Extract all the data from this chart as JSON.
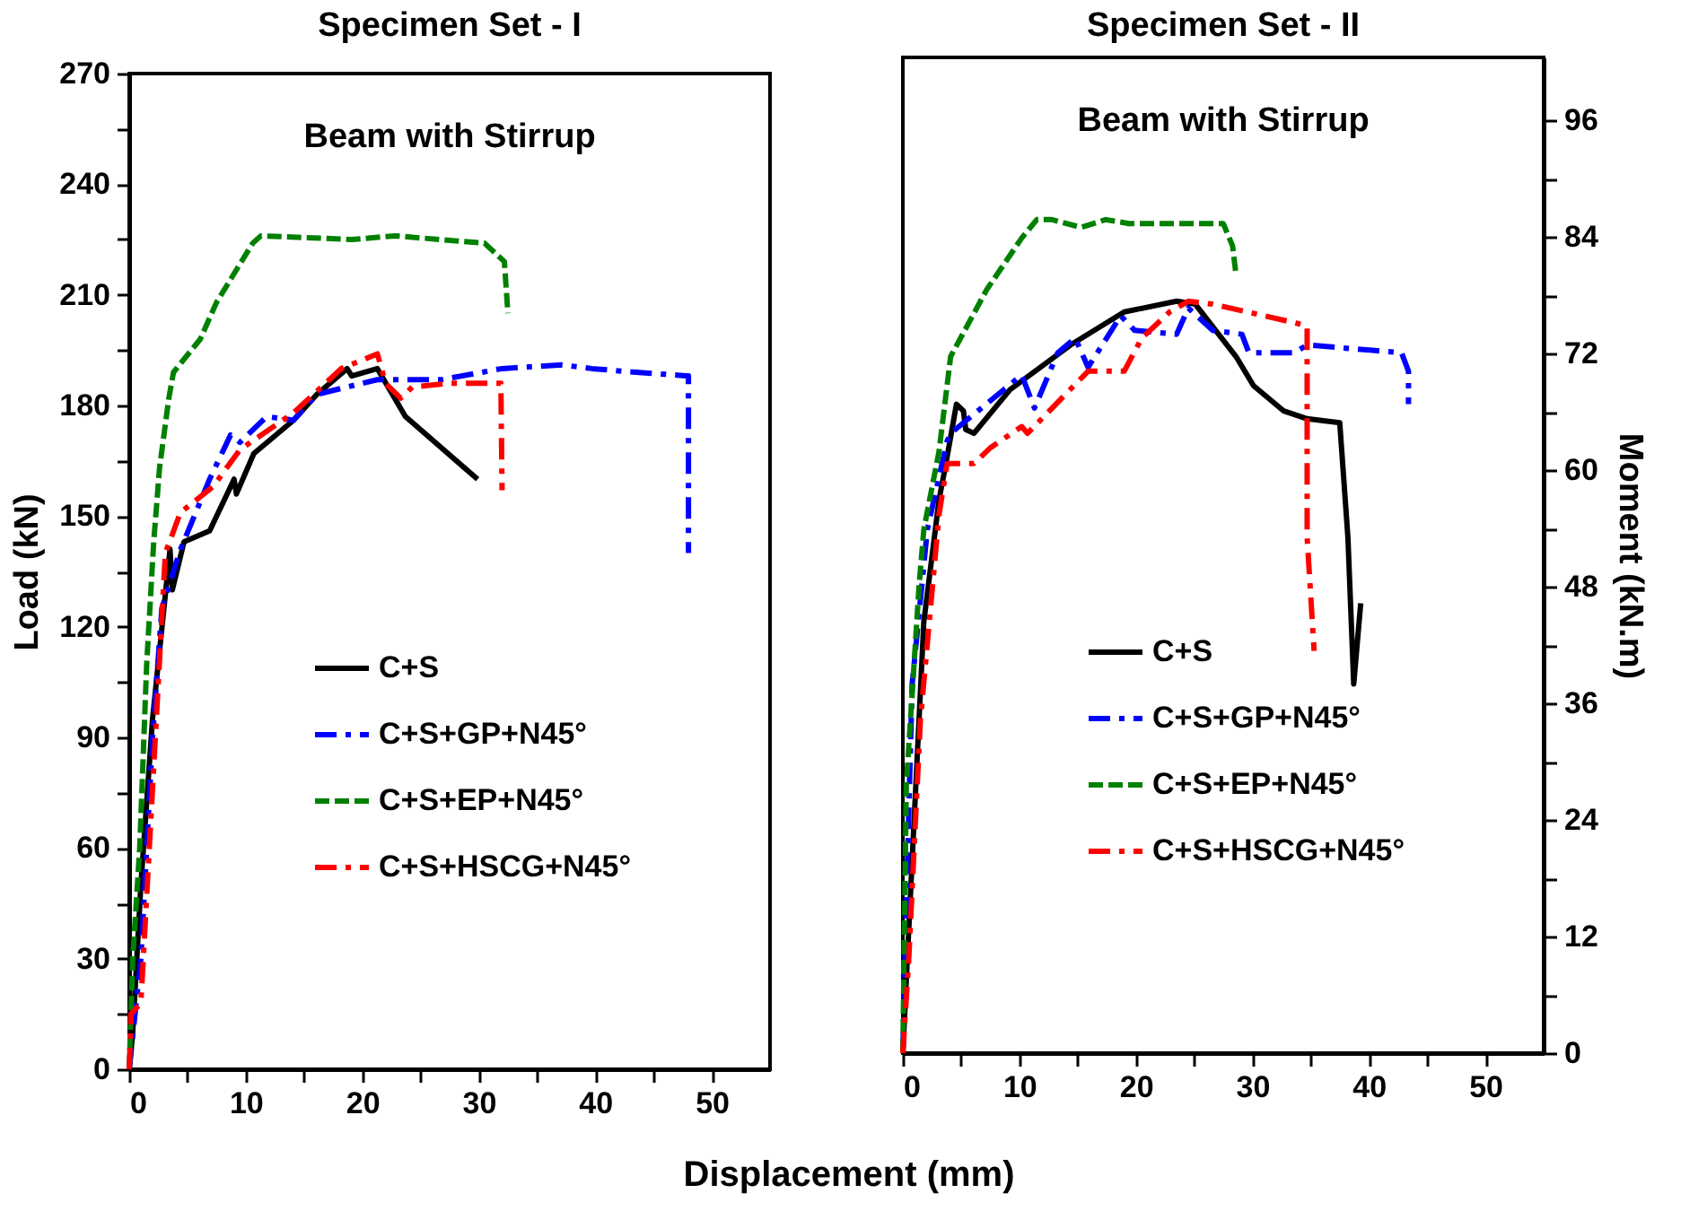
{
  "chart_data": [
    {
      "type": "line",
      "title": "Specimen Set - I",
      "xlabel": "Displacement (mm)",
      "ylabel": "Load (kN)",
      "annotations": [
        "Beam with Stirrup"
      ],
      "xlim": [
        0,
        55
      ],
      "xticks": [
        0,
        {
          "value": 5,
          "label": null
        },
        10,
        {
          "value": 15,
          "label": null
        },
        20,
        {
          "value": 25,
          "label": null
        },
        30,
        {
          "value": 35,
          "label": null
        },
        40,
        {
          "value": 45,
          "label": null
        },
        50
      ],
      "ylim": [
        0,
        270
      ],
      "yticks": [
        0,
        {
          "value": 15,
          "label": null
        },
        30,
        {
          "value": 45,
          "label": null
        },
        60,
        {
          "value": 75,
          "label": null
        },
        90,
        {
          "value": 105,
          "label": null
        },
        120,
        {
          "value": 135,
          "label": null
        },
        150,
        {
          "value": 165,
          "label": null
        },
        180,
        {
          "value": 195,
          "label": null
        },
        210,
        {
          "value": 225,
          "label": null
        },
        240,
        {
          "value": 255,
          "label": null
        },
        270
      ],
      "legend": "bottom right",
      "series": [
        {
          "name": "C+S",
          "color": "#000000",
          "line_style": "solid",
          "x": [
            0,
            0.3,
            1,
            2,
            3.5,
            3.7,
            4.7,
            6.9,
            9,
            9.2,
            10.7,
            14.1,
            16.1,
            18.7,
            19.1,
            21.3,
            23.7,
            29.9
          ],
          "values": [
            0,
            10,
            50,
            95,
            141,
            130,
            143,
            146,
            160,
            156,
            167,
            176,
            183,
            190,
            188,
            190,
            177,
            160
          ]
        },
        {
          "name": "C+S+GP+N45°",
          "color": "#0000ff",
          "line_style": "dashdot",
          "x": [
            0,
            1,
            2,
            2.8,
            4.4,
            6.9,
            8.7,
            9.5,
            11.8,
            14.1,
            16.1,
            21.3,
            26.8,
            32,
            37.1,
            39.7,
            43.5,
            48,
            48
          ],
          "values": [
            0,
            30,
            90,
            125,
            141,
            160,
            172,
            170,
            177,
            176,
            183,
            187,
            187,
            190,
            191,
            190,
            189,
            188,
            140
          ]
        },
        {
          "name": "C+S+EP+N45°",
          "color": "#008000",
          "line_style": "dashed",
          "x": [
            0,
            0.3,
            0.9,
            1.5,
            2.1,
            2.6,
            3.4,
            3.8,
            6.1,
            7.5,
            10.6,
            11.3,
            19.1,
            22.8,
            30.5,
            32.2,
            32.5
          ],
          "values": [
            0,
            30,
            60,
            110,
            143,
            163,
            182,
            189,
            198,
            208,
            224,
            226,
            225,
            226,
            224,
            219,
            205
          ]
        },
        {
          "name": "C+S+HSCG+N45°",
          "color": "#ff0000",
          "line_style": "dashdot",
          "x": [
            0,
            0.15,
            1,
            3.1,
            4.4,
            7.2,
            9.5,
            14.1,
            18.2,
            21.3,
            22,
            23.3,
            24.3,
            27.4,
            31.9,
            32
          ],
          "values": [
            0,
            15,
            18,
            140,
            151,
            158,
            168,
            178,
            190,
            194,
            186,
            182,
            185,
            186,
            186,
            157
          ]
        }
      ]
    },
    {
      "type": "line",
      "title": "Specimen Set - II",
      "y2label": "Moment (kN.m)",
      "annotations": [
        "Beam with Stirrup"
      ],
      "xlim": [
        0,
        55
      ],
      "xticks": [
        0,
        {
          "value": 5,
          "label": null
        },
        10,
        {
          "value": 15,
          "label": null
        },
        20,
        {
          "value": 25,
          "label": null
        },
        30,
        {
          "value": 35,
          "label": null
        },
        40,
        {
          "value": 45,
          "label": null
        },
        50
      ],
      "y2lim": [
        0,
        102.5
      ],
      "y2ticks": [
        0,
        {
          "value": 6,
          "label": null
        },
        12,
        {
          "value": 18,
          "label": null
        },
        24,
        {
          "value": 30,
          "label": null
        },
        36,
        {
          "value": 42,
          "label": null
        },
        48,
        {
          "value": 54,
          "label": null
        },
        60,
        {
          "value": 66,
          "label": null
        },
        72,
        {
          "value": 78,
          "label": null
        },
        84,
        {
          "value": 90,
          "label": null
        },
        96
      ],
      "legend": "bottom right",
      "series": [
        {
          "name": "C+S",
          "color": "#000000",
          "line_style": "solid",
          "axis": "y2",
          "x": [
            0,
            0.3,
            1.8,
            3.1,
            3.7,
            4.6,
            5.2,
            5.4,
            6.1,
            9.2,
            14.4,
            19,
            23.5,
            25.1,
            28.6,
            30.1,
            32.7,
            34.7,
            37.5,
            38.2,
            38.7,
            39.3
          ],
          "values": [
            0,
            7.6,
            44.4,
            56.9,
            60.7,
            66.8,
            66.1,
            64.2,
            63.8,
            68.3,
            72.9,
            76.3,
            77.4,
            77.1,
            71.7,
            68.7,
            66.1,
            65.3,
            64.9,
            53.1,
            38.0,
            46.3
          ]
        },
        {
          "name": "C+S+GP+N45°",
          "color": "#0000ff",
          "line_style": "dashdot",
          "axis": "y2",
          "x": [
            0,
            0.3,
            0.8,
            2.1,
            3.8,
            4.1,
            10.2,
            11.3,
            13.3,
            14.8,
            15.9,
            18.7,
            19.9,
            23.5,
            24.5,
            26.6,
            29.1,
            29.7,
            33.6,
            34.7,
            42.8,
            43.4,
            43.4
          ],
          "values": [
            0,
            15.2,
            38.0,
            53.9,
            63.0,
            63.8,
            69.8,
            66.4,
            72.1,
            73.6,
            70.6,
            75.9,
            74.4,
            74.0,
            76.7,
            74.4,
            74.0,
            72.1,
            72.1,
            72.9,
            72.1,
            70.2,
            66.8
          ]
        },
        {
          "name": "C+S+EP+N45°",
          "color": "#008000",
          "line_style": "dashed",
          "axis": "y2",
          "x": [
            0,
            0.3,
            1.4,
            1.8,
            3.1,
            4.1,
            7.2,
            10.2,
            11.5,
            12.8,
            15.3,
            17.4,
            19.4,
            27.5,
            28.3,
            28.6
          ],
          "values": [
            0,
            27.7,
            48.2,
            53.9,
            61.9,
            71.7,
            78.6,
            83.9,
            85.8,
            85.8,
            85.0,
            85.8,
            85.4,
            85.4,
            83.1,
            80.1
          ]
        },
        {
          "name": "C+S+HSCG+N45°",
          "color": "#ff0000",
          "line_style": "dashdot",
          "axis": "y2",
          "x": [
            0,
            0.5,
            1.5,
            3.1,
            3.8,
            6.1,
            7.5,
            10.2,
            10.7,
            15.9,
            19,
            20.5,
            22.9,
            24.5,
            26.6,
            33.6,
            34.7,
            34.7,
            35.3
          ],
          "values": [
            0,
            9.5,
            34.2,
            55.4,
            60.7,
            60.7,
            62.3,
            64.5,
            63.8,
            70.2,
            70.2,
            73.6,
            76.3,
            77.4,
            77.1,
            75.2,
            74.8,
            53.1,
            41.4
          ]
        }
      ]
    }
  ]
}
